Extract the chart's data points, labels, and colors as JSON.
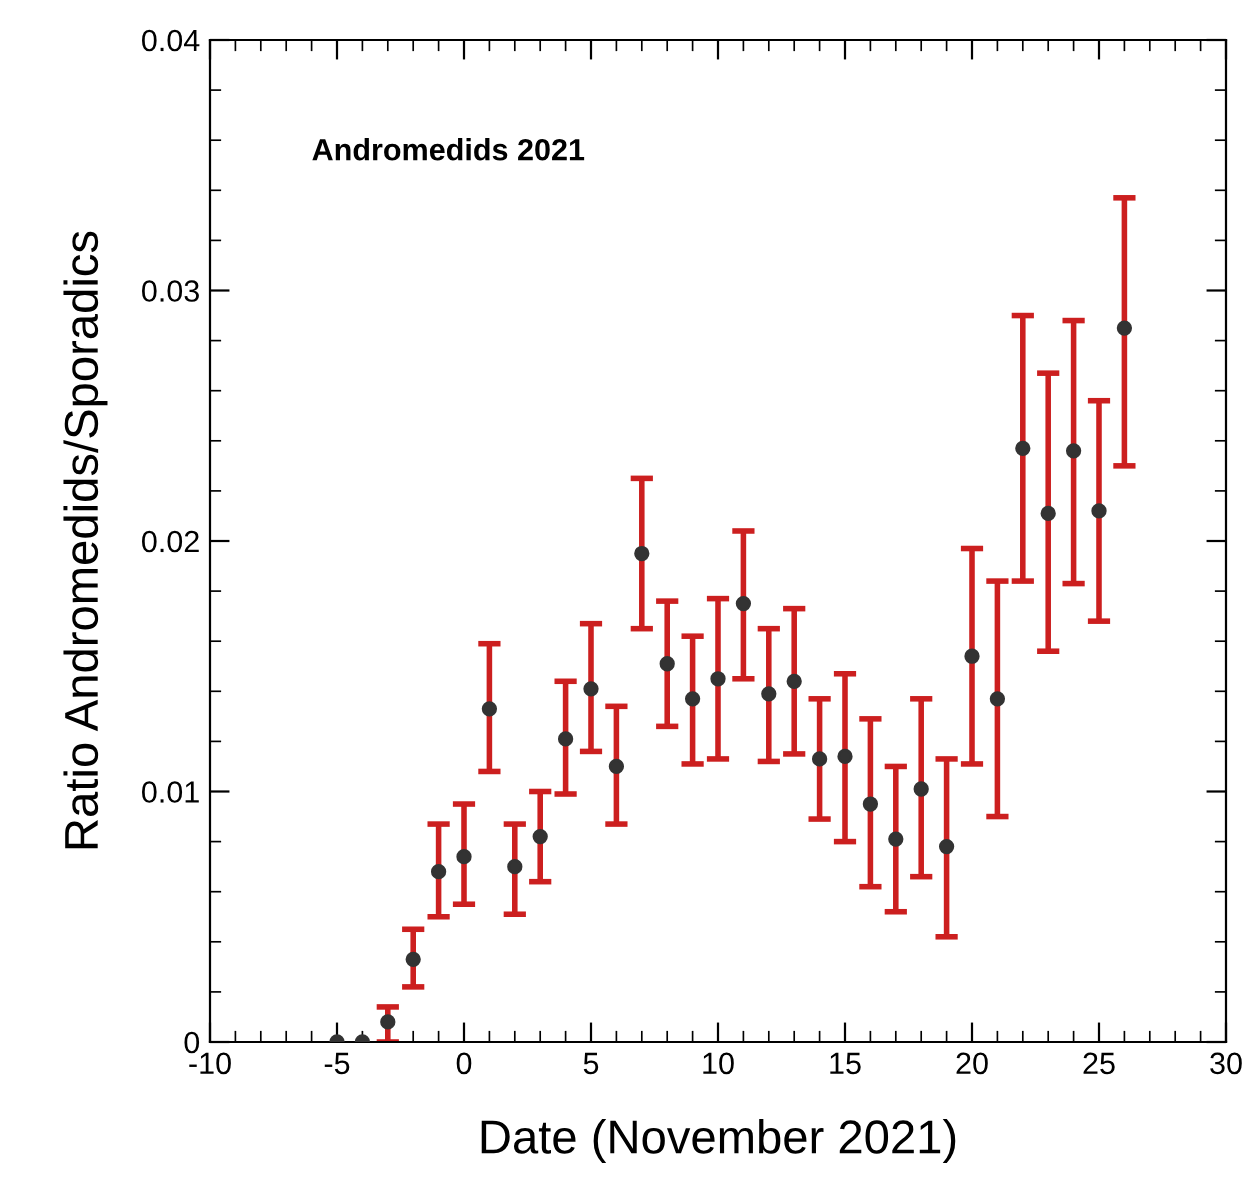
{
  "chart_data": {
    "type": "scatter",
    "xlabel": "Date (November 2021)",
    "ylabel": "Ratio Andromedids/Sporadics",
    "annotations": [
      "Andromedids 2021"
    ],
    "x": [
      -5,
      -4,
      -3,
      -2,
      -1,
      0,
      1,
      2,
      3,
      4,
      5,
      6,
      7,
      8,
      9,
      10,
      11,
      12,
      13,
      14,
      15,
      16,
      17,
      18,
      19,
      20,
      21,
      22,
      23,
      24,
      25,
      26
    ],
    "series": [
      {
        "color": "#333333",
        "values": [
          0,
          0,
          0.0008,
          0.0033,
          0.0068,
          0.0074,
          0.0133,
          0.007,
          0.0082,
          0.0121,
          0.0141,
          0.011,
          0.0195,
          0.0151,
          0.0137,
          0.0145,
          0.0175,
          0.0139,
          0.0144,
          0.0113,
          0.0114,
          0.0095,
          0.0081,
          0.0101,
          0.0078,
          0.0154,
          0.0137,
          0.0237,
          0.0211,
          0.0236,
          0.0212,
          0.0285
        ],
        "errors": [
          null,
          null,
          [
            0,
            0.0014
          ],
          [
            0.0022,
            0.0045
          ],
          [
            0.005,
            0.0087
          ],
          [
            0.0055,
            0.0095
          ],
          [
            0.0108,
            0.0159
          ],
          [
            0.0051,
            0.0087
          ],
          [
            0.0064,
            0.01
          ],
          [
            0.0099,
            0.0144
          ],
          [
            0.0116,
            0.0167
          ],
          [
            0.0087,
            0.0134
          ],
          [
            0.0165,
            0.0225
          ],
          [
            0.0126,
            0.0176
          ],
          [
            0.0111,
            0.0162
          ],
          [
            0.0113,
            0.0177
          ],
          [
            0.0145,
            0.0204
          ],
          [
            0.0112,
            0.0165
          ],
          [
            0.0115,
            0.0173
          ],
          [
            0.0089,
            0.0137
          ],
          [
            0.008,
            0.0147
          ],
          [
            0.0062,
            0.0129
          ],
          [
            0.0052,
            0.011
          ],
          [
            0.0066,
            0.0137
          ],
          [
            0.0042,
            0.0113
          ],
          [
            0.0111,
            0.0197
          ],
          [
            0.009,
            0.0184
          ],
          [
            0.0184,
            0.029
          ],
          [
            0.0156,
            0.0267
          ],
          [
            0.0183,
            0.0288
          ],
          [
            0.0168,
            0.0256
          ],
          [
            0.023,
            0.0337
          ]
        ]
      }
    ],
    "marker": "circle",
    "xlim": [
      -10,
      30
    ],
    "xticks": [
      -10,
      -5,
      0,
      5,
      10,
      15,
      20,
      25,
      30
    ],
    "ylim": [
      0,
      0.04
    ],
    "yticks": [
      0,
      0.01,
      0.02,
      0.03,
      0.04
    ],
    "grid": false,
    "legend": false
  }
}
